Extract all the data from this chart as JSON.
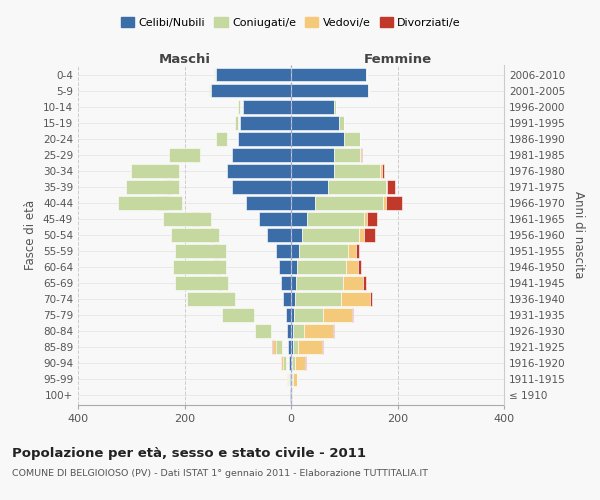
{
  "age_groups": [
    "100+",
    "95-99",
    "90-94",
    "85-89",
    "80-84",
    "75-79",
    "70-74",
    "65-69",
    "60-64",
    "55-59",
    "50-54",
    "45-49",
    "40-44",
    "35-39",
    "30-34",
    "25-29",
    "20-24",
    "15-19",
    "10-14",
    "5-9",
    "0-4"
  ],
  "birth_years": [
    "≤ 1910",
    "1911-1915",
    "1916-1920",
    "1921-1925",
    "1926-1930",
    "1931-1935",
    "1936-1940",
    "1941-1945",
    "1946-1950",
    "1951-1955",
    "1956-1960",
    "1961-1965",
    "1966-1970",
    "1971-1975",
    "1976-1980",
    "1981-1985",
    "1986-1990",
    "1991-1995",
    "1996-2000",
    "2001-2005",
    "2006-2010"
  ],
  "colors": {
    "celibi": "#3B6EA8",
    "coniugati": "#C5D8A0",
    "vedovi": "#F5C97A",
    "divorziati": "#C0392B"
  },
  "maschi": {
    "celibi": [
      1,
      2,
      3,
      5,
      8,
      10,
      15,
      18,
      22,
      28,
      45,
      60,
      85,
      110,
      120,
      110,
      100,
      95,
      90,
      150,
      140
    ],
    "coniugati": [
      0,
      2,
      6,
      12,
      30,
      60,
      90,
      100,
      100,
      95,
      90,
      90,
      120,
      100,
      90,
      60,
      20,
      5,
      5,
      2,
      2
    ],
    "vedovi": [
      0,
      2,
      5,
      8,
      12,
      5,
      8,
      5,
      3,
      2,
      2,
      2,
      2,
      1,
      1,
      1,
      0,
      0,
      0,
      0,
      0
    ],
    "divorziati": [
      0,
      0,
      2,
      5,
      5,
      2,
      2,
      8,
      10,
      10,
      8,
      18,
      22,
      12,
      5,
      5,
      0,
      0,
      0,
      0,
      0
    ]
  },
  "femmine": {
    "celibi": [
      1,
      2,
      2,
      3,
      4,
      5,
      8,
      10,
      12,
      15,
      20,
      30,
      45,
      70,
      80,
      80,
      100,
      90,
      80,
      145,
      140
    ],
    "coniugati": [
      0,
      2,
      5,
      10,
      20,
      55,
      85,
      88,
      92,
      92,
      108,
      108,
      128,
      108,
      88,
      50,
      30,
      10,
      5,
      2,
      2
    ],
    "vedovi": [
      2,
      8,
      20,
      45,
      55,
      55,
      55,
      38,
      22,
      15,
      10,
      5,
      5,
      2,
      2,
      2,
      0,
      0,
      0,
      0,
      0
    ],
    "divorziati": [
      0,
      0,
      2,
      2,
      2,
      2,
      5,
      5,
      5,
      5,
      20,
      18,
      30,
      15,
      5,
      2,
      0,
      0,
      0,
      0,
      0
    ]
  },
  "title": "Popolazione per età, sesso e stato civile - 2011",
  "subtitle": "COMUNE DI BELGIOIOSO (PV) - Dati ISTAT 1° gennaio 2011 - Elaborazione TUTTITALIA.IT",
  "xlabel_left": "Maschi",
  "xlabel_right": "Femmine",
  "ylabel_left": "Fasce di età",
  "ylabel_right": "Anni di nascita",
  "xlim": 400,
  "bg_color": "#f8f8f8",
  "grid_color_x": "#cccccc",
  "grid_color_y": "#dddddd"
}
